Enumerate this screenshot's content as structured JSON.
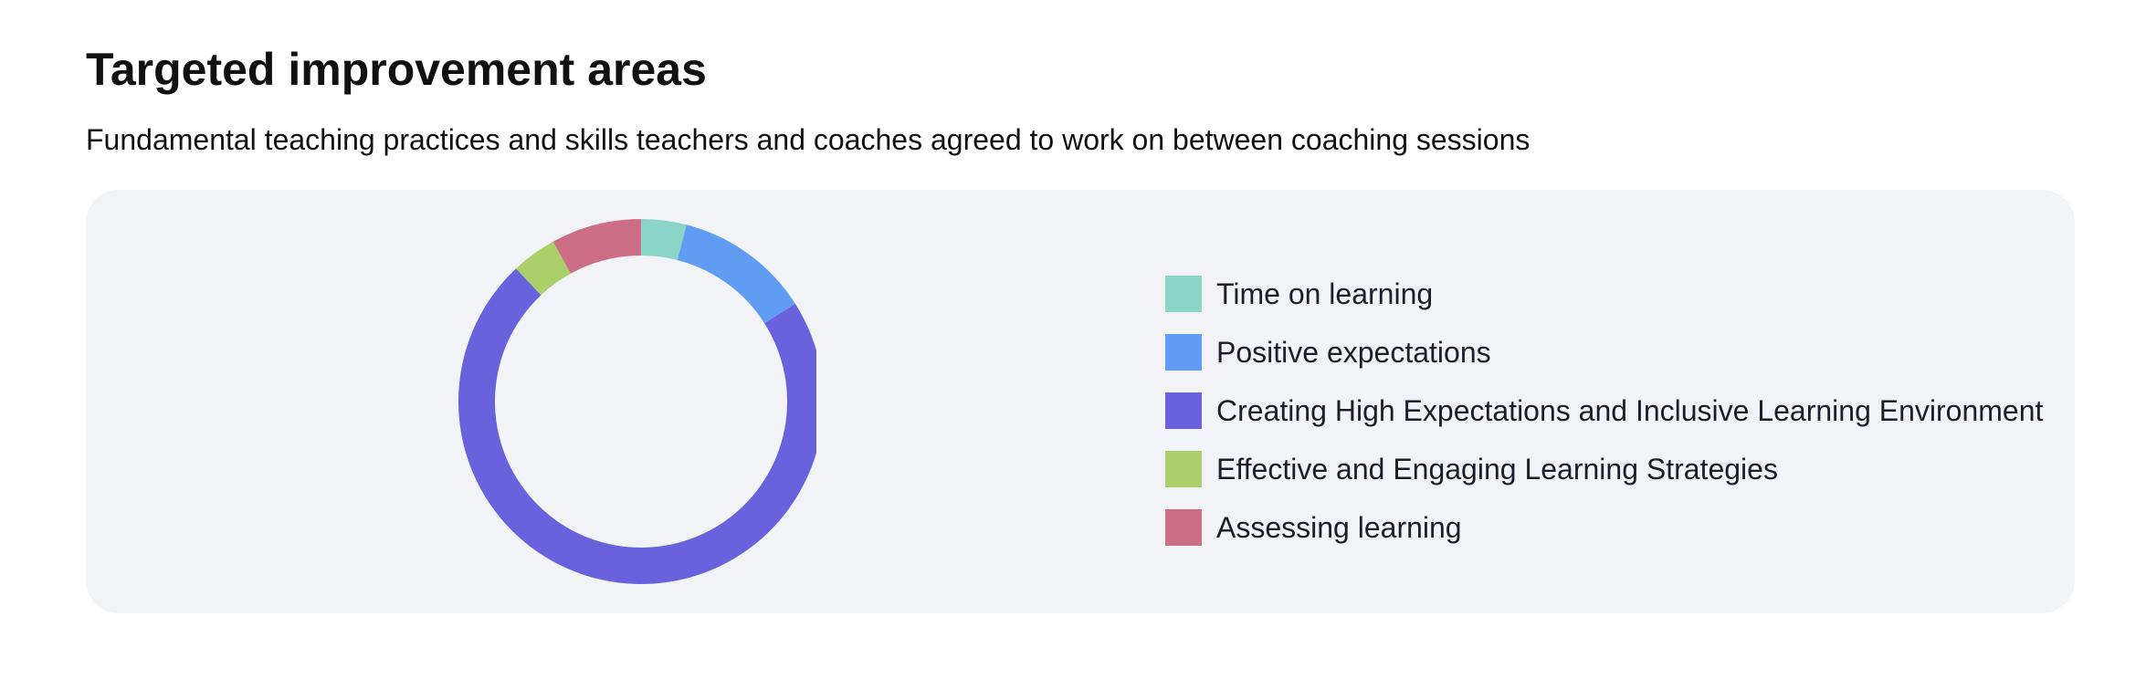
{
  "header": {
    "title": "Targeted improvement areas",
    "subtitle": "Fundamental teaching practices and skills teachers and coaches agreed to work on between coaching sessions"
  },
  "chart_data": {
    "type": "pie",
    "donut": true,
    "title": "",
    "legend_position": "right",
    "series": [
      {
        "name": "Time on learning",
        "value": 4,
        "color": "#8ad4c8"
      },
      {
        "name": "Positive expectations",
        "value": 12,
        "color": "#5f9cf2"
      },
      {
        "name": "Creating High Expectations and Inclusive Learning Environment",
        "value": 72,
        "color": "#6a62dc"
      },
      {
        "name": "Effective and Engaging Learning Strategies",
        "value": 4,
        "color": "#abcf6a"
      },
      {
        "name": "Assessing learning",
        "value": 8,
        "color": "#cc6e85"
      }
    ]
  }
}
